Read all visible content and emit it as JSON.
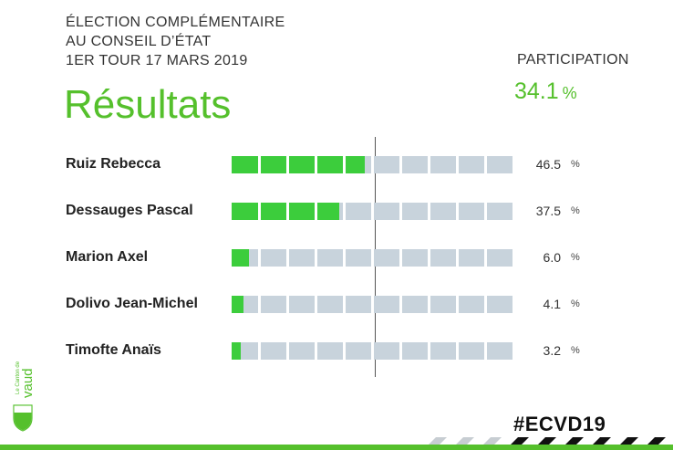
{
  "header": {
    "line1": "ÉLECTION COMPLÉMENTAIRE",
    "line2": "AU CONSEIL D’ÉTAT",
    "line3": "1ER TOUR 17 MARS 2019",
    "title": "Résultats"
  },
  "participation": {
    "label": "PARTICIPATION",
    "value": "34.1",
    "unit": "%",
    "percent": 34.1
  },
  "results": [
    {
      "name": "Ruiz Rebecca",
      "value_label": "46.5",
      "unit": "%",
      "percent": 46.5
    },
    {
      "name": "Dessauges Pascal",
      "value_label": "37.5",
      "unit": "%",
      "percent": 37.5
    },
    {
      "name": "Marion Axel",
      "value_label": "6.0",
      "unit": "%",
      "percent": 6.0
    },
    {
      "name": "Dolivo Jean-Michel",
      "value_label": "4.1",
      "unit": "%",
      "percent": 4.1
    },
    {
      "name": "Timofte Anaïs",
      "value_label": "3.2",
      "unit": "%",
      "percent": 3.2
    }
  ],
  "logo": {
    "text": "Le Canton de vaud",
    "icon": "vaud-crest-icon"
  },
  "hashtag": "#ECVD19",
  "colors": {
    "accent": "#55c02c",
    "bar_fill": "#3ccd3c",
    "bar_empty": "#c8d3dc"
  }
}
